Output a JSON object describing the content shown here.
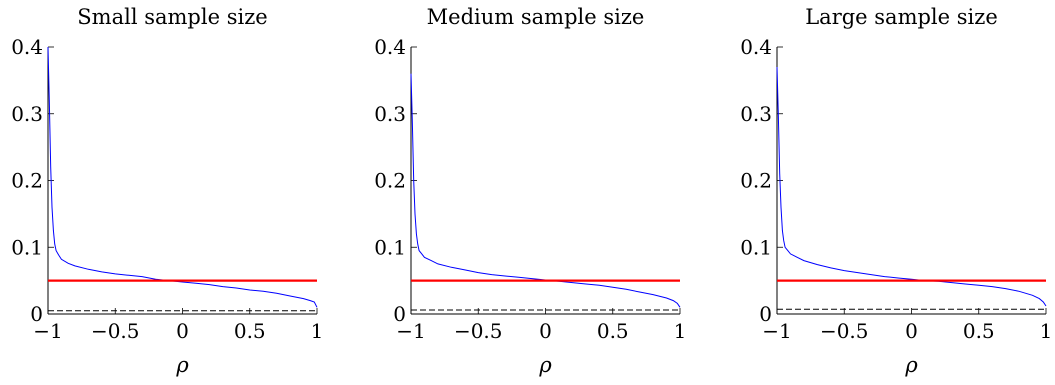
{
  "chart_data": [
    {
      "type": "line",
      "title": "Small sample size",
      "xlabel": "ρ",
      "ylabel": "",
      "xlim": [
        -1,
        1
      ],
      "ylim": [
        0,
        0.4
      ],
      "xticks": [
        -1,
        -0.5,
        0,
        0.5,
        1
      ],
      "xtick_labels": [
        "−1",
        "−0.5",
        "0",
        "0.5",
        "1"
      ],
      "yticks": [
        0,
        0.1,
        0.2,
        0.3,
        0.4
      ],
      "ytick_labels": [
        "0",
        "0.1",
        "0.2",
        "0.3",
        "0.4"
      ],
      "grid": false,
      "series": [
        {
          "color": "#0000ff",
          "style": "solid",
          "x": [
            -1,
            -0.99,
            -0.98,
            -0.97,
            -0.96,
            -0.95,
            -0.94,
            -0.92,
            -0.9,
            -0.85,
            -0.8,
            -0.7,
            -0.6,
            -0.5,
            -0.4,
            -0.3,
            -0.2,
            -0.1,
            0,
            0.1,
            0.2,
            0.3,
            0.4,
            0.5,
            0.6,
            0.7,
            0.8,
            0.9,
            0.95,
            0.98,
            1
          ],
          "values": [
            0.4,
            0.32,
            0.22,
            0.16,
            0.125,
            0.105,
            0.095,
            0.088,
            0.082,
            0.076,
            0.072,
            0.067,
            0.063,
            0.06,
            0.058,
            0.056,
            0.052,
            0.05,
            0.048,
            0.046,
            0.044,
            0.041,
            0.039,
            0.036,
            0.034,
            0.031,
            0.027,
            0.023,
            0.02,
            0.018,
            0.01
          ]
        },
        {
          "color": "#ff0000",
          "style": "solid",
          "x": [
            -1,
            1
          ],
          "values": [
            0.05,
            0.05
          ]
        },
        {
          "color": "#000000",
          "style": "dashed",
          "x": [
            -1,
            -0.5,
            0,
            0.5,
            1
          ],
          "values": [
            0.005,
            0.005,
            0.005,
            0.005,
            0.005
          ]
        }
      ]
    },
    {
      "type": "line",
      "title": "Medium sample size",
      "xlabel": "ρ",
      "ylabel": "",
      "xlim": [
        -1,
        1
      ],
      "ylim": [
        0,
        0.4
      ],
      "xticks": [
        -1,
        -0.5,
        0,
        0.5,
        1
      ],
      "xtick_labels": [
        "−1",
        "−0.5",
        "0",
        "0.5",
        "1"
      ],
      "yticks": [
        0,
        0.1,
        0.2,
        0.3,
        0.4
      ],
      "ytick_labels": [
        "0",
        "0.1",
        "0.2",
        "0.3",
        "0.4"
      ],
      "grid": false,
      "series": [
        {
          "color": "#0000ff",
          "style": "solid",
          "x": [
            -1,
            -0.99,
            -0.98,
            -0.97,
            -0.96,
            -0.95,
            -0.94,
            -0.92,
            -0.9,
            -0.85,
            -0.8,
            -0.7,
            -0.6,
            -0.5,
            -0.4,
            -0.3,
            -0.2,
            -0.1,
            0,
            0.1,
            0.2,
            0.3,
            0.4,
            0.5,
            0.6,
            0.7,
            0.8,
            0.9,
            0.95,
            0.98,
            1
          ],
          "values": [
            0.36,
            0.29,
            0.2,
            0.15,
            0.12,
            0.105,
            0.095,
            0.09,
            0.085,
            0.08,
            0.075,
            0.07,
            0.066,
            0.062,
            0.059,
            0.057,
            0.055,
            0.053,
            0.051,
            0.049,
            0.047,
            0.045,
            0.043,
            0.04,
            0.037,
            0.033,
            0.029,
            0.024,
            0.02,
            0.016,
            0.01
          ]
        },
        {
          "color": "#ff0000",
          "style": "solid",
          "x": [
            -1,
            1
          ],
          "values": [
            0.05,
            0.05
          ]
        },
        {
          "color": "#000000",
          "style": "dashed",
          "x": [
            -1,
            -0.5,
            0,
            0.5,
            1
          ],
          "values": [
            0.006,
            0.006,
            0.006,
            0.006,
            0.006
          ]
        }
      ]
    },
    {
      "type": "line",
      "title": "Large sample size",
      "xlabel": "ρ",
      "ylabel": "",
      "xlim": [
        -1,
        1
      ],
      "ylim": [
        0,
        0.4
      ],
      "xticks": [
        -1,
        -0.5,
        0,
        0.5,
        1
      ],
      "xtick_labels": [
        "−1",
        "−0.5",
        "0",
        "0.5",
        "1"
      ],
      "yticks": [
        0,
        0.1,
        0.2,
        0.3,
        0.4
      ],
      "ytick_labels": [
        "0",
        "0.1",
        "0.2",
        "0.3",
        "0.4"
      ],
      "grid": false,
      "series": [
        {
          "color": "#0000ff",
          "style": "solid",
          "x": [
            -1,
            -0.99,
            -0.98,
            -0.97,
            -0.96,
            -0.95,
            -0.94,
            -0.92,
            -0.9,
            -0.85,
            -0.8,
            -0.7,
            -0.6,
            -0.5,
            -0.4,
            -0.3,
            -0.2,
            -0.1,
            0,
            0.1,
            0.2,
            0.3,
            0.4,
            0.5,
            0.6,
            0.7,
            0.8,
            0.9,
            0.95,
            0.98,
            1
          ],
          "values": [
            0.37,
            0.3,
            0.21,
            0.16,
            0.125,
            0.11,
            0.1,
            0.095,
            0.09,
            0.085,
            0.08,
            0.074,
            0.069,
            0.065,
            0.062,
            0.059,
            0.056,
            0.054,
            0.052,
            0.05,
            0.049,
            0.047,
            0.045,
            0.043,
            0.041,
            0.038,
            0.034,
            0.028,
            0.023,
            0.018,
            0.012
          ]
        },
        {
          "color": "#ff0000",
          "style": "solid",
          "x": [
            -1,
            1
          ],
          "values": [
            0.05,
            0.05
          ]
        },
        {
          "color": "#000000",
          "style": "dashed",
          "x": [
            -1,
            -0.5,
            0,
            0.5,
            1
          ],
          "values": [
            0.007,
            0.007,
            0.007,
            0.007,
            0.007
          ]
        }
      ]
    }
  ]
}
